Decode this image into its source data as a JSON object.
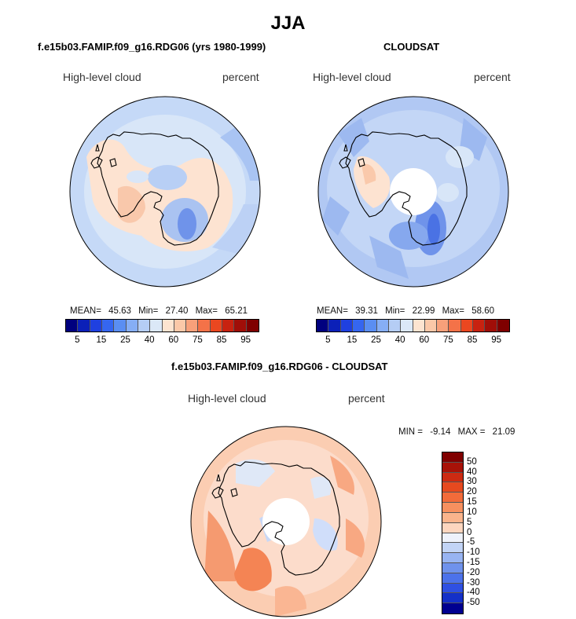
{
  "figure": {
    "title": "JJA"
  },
  "panels": [
    {
      "title": "f.e15b03.FAMIP.f09_g16.RDG06 (yrs 1980-1999)",
      "left_label": "High-level cloud",
      "right_label": "percent",
      "stats": {
        "mean_label": "MEAN=",
        "mean": "45.63",
        "min_label": "Min=",
        "min": "27.40",
        "max_label": "Max=",
        "max": "65.21"
      },
      "colorbar": {
        "colors": [
          "#00007f",
          "#0b20b8",
          "#1f40e0",
          "#3566f0",
          "#5a8ef2",
          "#86aef5",
          "#b5cdf5",
          "#dbe8f7",
          "#fde4d0",
          "#fbc8a8",
          "#f8a07a",
          "#f47248",
          "#ea4720",
          "#c82210",
          "#a00e08",
          "#7f0000"
        ],
        "ticks": [
          "5",
          "15",
          "25",
          "40",
          "60",
          "75",
          "85",
          "95"
        ]
      }
    },
    {
      "title": "CLOUDSAT",
      "left_label": "High-level cloud",
      "right_label": "percent",
      "stats": {
        "mean_label": "MEAN=",
        "mean": "39.31",
        "min_label": "Min=",
        "min": "22.99",
        "max_label": "Max=",
        "max": "58.60"
      },
      "colorbar": {
        "colors": [
          "#00007f",
          "#0b20b8",
          "#1f40e0",
          "#3566f0",
          "#5a8ef2",
          "#86aef5",
          "#b5cdf5",
          "#dbe8f7",
          "#fde4d0",
          "#fbc8a8",
          "#f8a07a",
          "#f47248",
          "#ea4720",
          "#c82210",
          "#a00e08",
          "#7f0000"
        ],
        "ticks": [
          "5",
          "15",
          "25",
          "40",
          "60",
          "75",
          "85",
          "95"
        ]
      }
    },
    {
      "title": "f.e15b03.FAMIP.f09_g16.RDG06 - CLOUDSAT",
      "left_label": "High-level cloud",
      "right_label": "percent",
      "stats": {
        "min_label": "MIN =",
        "min": "-9.14",
        "max_label": "MAX =",
        "max": "21.09"
      },
      "colorbar": {
        "colors": [
          "#800000",
          "#a81208",
          "#cc2a12",
          "#e6491f",
          "#f26b3a",
          "#f7905f",
          "#fab48c",
          "#fdd6bf",
          "#eef2fb",
          "#c2d4f6",
          "#98b4f2",
          "#6f92ec",
          "#4c72ea",
          "#2f50e2",
          "#1430c8",
          "#000090"
        ],
        "ticks": [
          "50",
          "40",
          "30",
          "20",
          "15",
          "10",
          "5",
          "0",
          "-5",
          "-10",
          "-15",
          "-20",
          "-30",
          "-40",
          "-50"
        ]
      }
    }
  ],
  "colors": {
    "coast": "#000000",
    "pole_hole": "#ffffff"
  }
}
